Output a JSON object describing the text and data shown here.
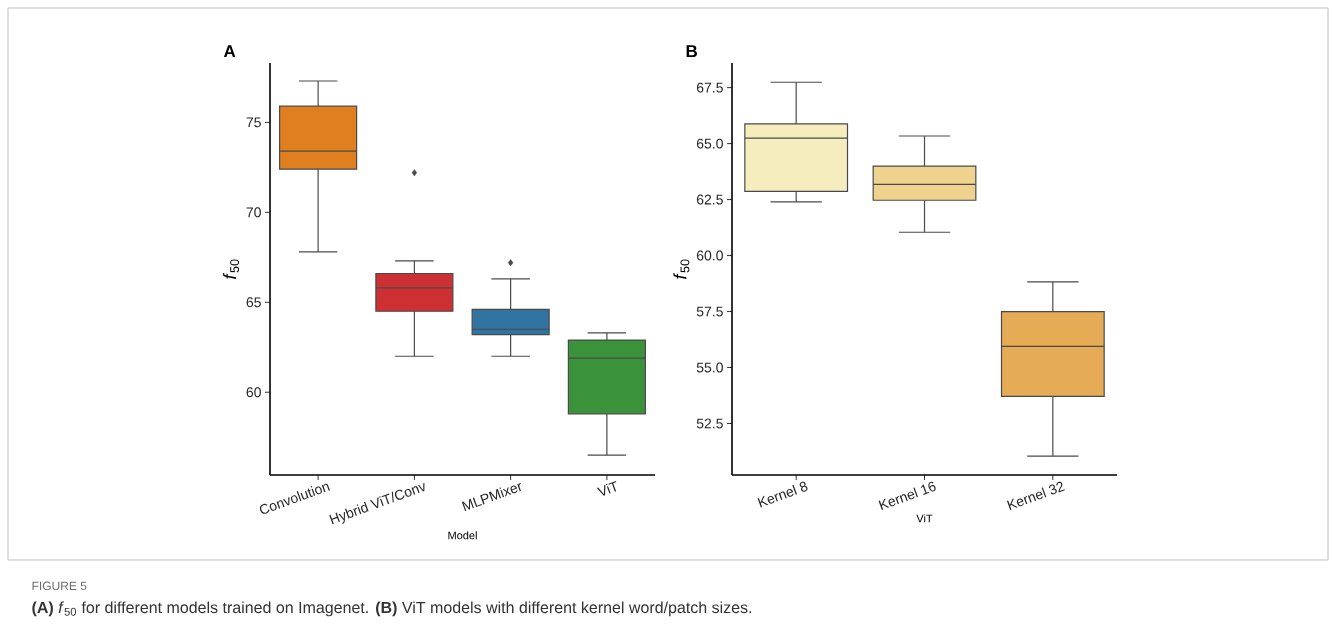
{
  "chart_data": [
    {
      "type": "box",
      "title": "A",
      "xlabel": "Model",
      "ylabel": "*f*$_{50}$",
      "categories": [
        "Convolution",
        "Hybrid ViT/Conv",
        "MLPMixer",
        "ViT"
      ],
      "colors": [
        "#e07f1f",
        "#cc3033",
        "#3274a1",
        "#3a923a"
      ],
      "ylim": [
        55.4,
        78.3
      ],
      "yticks": [
        60,
        65,
        70,
        75
      ],
      "marker": "diamond",
      "boxes": [
        {
          "low": 67.8,
          "q1": 72.4,
          "median": 73.4,
          "q3": 75.9,
          "high": 77.3
        },
        {
          "low": 62.0,
          "q1": 64.5,
          "median": 65.8,
          "q3": 66.6,
          "high": 67.3,
          "outliers": [
            72.2
          ]
        },
        {
          "low": 62.0,
          "q1": 63.2,
          "median": 63.5,
          "q3": 64.6,
          "high": 66.3,
          "outliers": [
            67.2
          ]
        },
        {
          "low": 56.5,
          "q1": 58.8,
          "median": 61.9,
          "q3": 62.9,
          "high": 63.3
        }
      ],
      "annotations": [
        "FIGURE 5",
        "**(A)** *f*$_{50}$ for different models trained on Imagenet. **(B)** ViT models with different kernel word/patch sizes."
      ]
    },
    {
      "type": "box",
      "title": "B",
      "xlabel": "ViT",
      "ylabel": "*f*$_{50}$",
      "categories": [
        "Kernel 8",
        "Kernel 16",
        "Kernel 32"
      ],
      "colors": [
        "#f5edbd",
        "#eed28e",
        "#e5ab55"
      ],
      "ylim": [
        50.2,
        68.6
      ],
      "yticks": [
        52.5,
        {
          "value": 55,
          "label": "55.0"
        },
        57.5,
        {
          "value": 60,
          "label": "60.0"
        },
        62.5,
        {
          "value": 65,
          "label": "65.0"
        },
        67.5
      ],
      "boxes": [
        {
          "low": 62.4,
          "q1": 62.87,
          "median": 65.24,
          "q3": 65.88,
          "high": 67.74
        },
        {
          "low": 61.04,
          "q1": 62.47,
          "median": 63.18,
          "q3": 63.99,
          "high": 65.34
        },
        {
          "low": 51.04,
          "q1": 53.71,
          "median": 55.94,
          "q3": 57.5,
          "high": 58.82
        }
      ]
    }
  ]
}
